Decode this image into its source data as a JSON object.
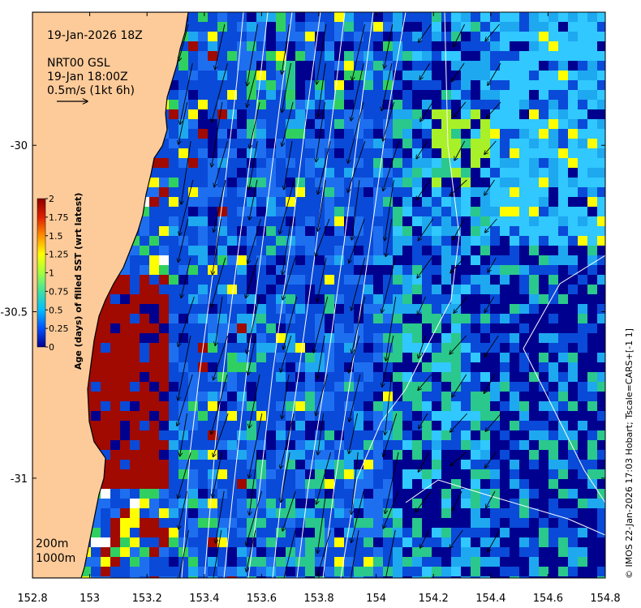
{
  "map": {
    "date_label": "19-Jan-2026 18Z",
    "source_lines": [
      "NRT00 GSL",
      "19-Jan 18:00Z",
      "0.5m/s (1kt 6h)"
    ],
    "bathy_labels": [
      "200m",
      "1000m"
    ],
    "credit": "© IMOS 22-Jan-2026 17:03 Hobart; Tscale=CARS+[-1 1]",
    "extent": {
      "lon": [
        152.8,
        154.8
      ],
      "lat": [
        -31.3,
        -29.6
      ]
    },
    "x_ticks": [
      {
        "value": 152.8,
        "label": "152.8"
      },
      {
        "value": 153.0,
        "label": "153"
      },
      {
        "value": 153.2,
        "label": "153.2"
      },
      {
        "value": 153.4,
        "label": "153.4"
      },
      {
        "value": 153.6,
        "label": "153.6"
      },
      {
        "value": 153.8,
        "label": "153.8"
      },
      {
        "value": 154.0,
        "label": "154"
      },
      {
        "value": 154.2,
        "label": "154.2"
      },
      {
        "value": 154.4,
        "label": "154.4"
      },
      {
        "value": 154.6,
        "label": "154.6"
      },
      {
        "value": 154.8,
        "label": "154.8"
      }
    ],
    "y_ticks": [
      {
        "value": -30.0,
        "label": "-30"
      },
      {
        "value": -30.5,
        "label": "-30.5"
      },
      {
        "value": -31.0,
        "label": "-31"
      }
    ],
    "colors": {
      "land": "#fdcb9a",
      "frame": "#000000",
      "contour": "#ffffff",
      "arrow": "#000000"
    }
  },
  "colorbar": {
    "title": "Age (days) of filled SST (wrt latest)",
    "range": [
      0,
      2
    ],
    "ticks": [
      {
        "value": 0,
        "label": "0"
      },
      {
        "value": 0.25,
        "label": "0.25"
      },
      {
        "value": 0.5,
        "label": "0.5"
      },
      {
        "value": 0.75,
        "label": "0.75"
      },
      {
        "value": 1,
        "label": "1"
      },
      {
        "value": 1.25,
        "label": "1.25"
      },
      {
        "value": 1.5,
        "label": "1.5"
      },
      {
        "value": 1.75,
        "label": "1.75"
      },
      {
        "value": 2,
        "label": "2"
      }
    ],
    "stops": [
      "#00008f",
      "#0050ff",
      "#00bfff",
      "#40e0a0",
      "#a0ff40",
      "#ffff00",
      "#ff9000",
      "#e02000",
      "#8b0000"
    ]
  }
}
